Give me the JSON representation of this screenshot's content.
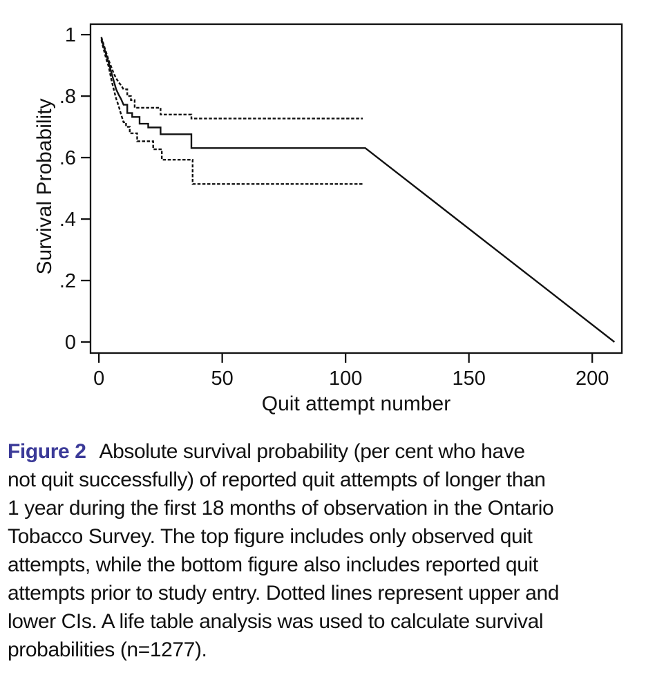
{
  "figure": {
    "caption": {
      "label": "Figure 2",
      "label_color": "#3b3a98",
      "lines": [
        "Absolute survival probability (per cent who have",
        "not quit successfully) of reported quit attempts of longer than",
        "1 year during the first 18 months of observation in the Ontario",
        "Tobacco Survey. The top figure includes only observed quit",
        "attempts, while the bottom figure also includes reported quit",
        "attempts prior to study entry. Dotted lines represent upper and",
        "lower CIs. A life table analysis was used to calculate survival",
        "probabilities (n=1277)."
      ]
    }
  },
  "chart_data": {
    "type": "line",
    "title": "",
    "xlabel": "Quit attempt number",
    "ylabel": "Survival Probability",
    "xlim": [
      -3.4,
      212
    ],
    "ylim": [
      -0.036,
      1.034
    ],
    "xticks": {
      "values": [
        0,
        50,
        100,
        150,
        200
      ],
      "labels": [
        "0",
        "50",
        "100",
        "150",
        "200"
      ]
    },
    "yticks": {
      "values": [
        1,
        0.8,
        0.6,
        0.4,
        0.2,
        0
      ],
      "labels": [
        "1",
        ".8",
        ".6",
        ".4",
        ".2",
        "0"
      ]
    },
    "grid": false,
    "legend": "none",
    "line_color": "#111111",
    "series": [
      {
        "name": "survival",
        "style": "solid",
        "points": [
          [
            1,
            0.988
          ],
          [
            2,
            0.96
          ],
          [
            3,
            0.934
          ],
          [
            4,
            0.908
          ],
          [
            5,
            0.878
          ],
          [
            6,
            0.85
          ],
          [
            7,
            0.822
          ],
          [
            8,
            0.805
          ],
          [
            9,
            0.79
          ],
          [
            10,
            0.772
          ],
          [
            11.5,
            0.745,
            "s"
          ],
          [
            13.5,
            0.732,
            "s"
          ],
          [
            16.5,
            0.71,
            "s"
          ],
          [
            20,
            0.698,
            "s"
          ],
          [
            25,
            0.676,
            "s"
          ],
          [
            37.5,
            0.631,
            "s"
          ],
          [
            108,
            0.631
          ],
          [
            209,
            0
          ]
        ]
      },
      {
        "name": "upper-ci",
        "style": "dashed",
        "points": [
          [
            1,
            0.992
          ],
          [
            2,
            0.966
          ],
          [
            3,
            0.941
          ],
          [
            4,
            0.916
          ],
          [
            5,
            0.895
          ],
          [
            6,
            0.874
          ],
          [
            7,
            0.858
          ],
          [
            8,
            0.845
          ],
          [
            9,
            0.835
          ],
          [
            10,
            0.822
          ],
          [
            11.5,
            0.8,
            "s"
          ],
          [
            13,
            0.787,
            "s"
          ],
          [
            14.5,
            0.762,
            "s"
          ],
          [
            25,
            0.74,
            "s"
          ],
          [
            37.5,
            0.727,
            "s"
          ],
          [
            107,
            0.727
          ]
        ]
      },
      {
        "name": "lower-ci",
        "style": "dashed",
        "points": [
          [
            1,
            0.982
          ],
          [
            2,
            0.95
          ],
          [
            3,
            0.92
          ],
          [
            4,
            0.895
          ],
          [
            5,
            0.855
          ],
          [
            6,
            0.822
          ],
          [
            7,
            0.792
          ],
          [
            8,
            0.768
          ],
          [
            9,
            0.74
          ],
          [
            10,
            0.715
          ],
          [
            11,
            0.7,
            "s"
          ],
          [
            12.5,
            0.679,
            "s"
          ],
          [
            15.5,
            0.653,
            "s"
          ],
          [
            22,
            0.627,
            "s"
          ],
          [
            25.5,
            0.593,
            "s"
          ],
          [
            38,
            0.514,
            "s"
          ],
          [
            107,
            0.514
          ]
        ]
      }
    ]
  }
}
